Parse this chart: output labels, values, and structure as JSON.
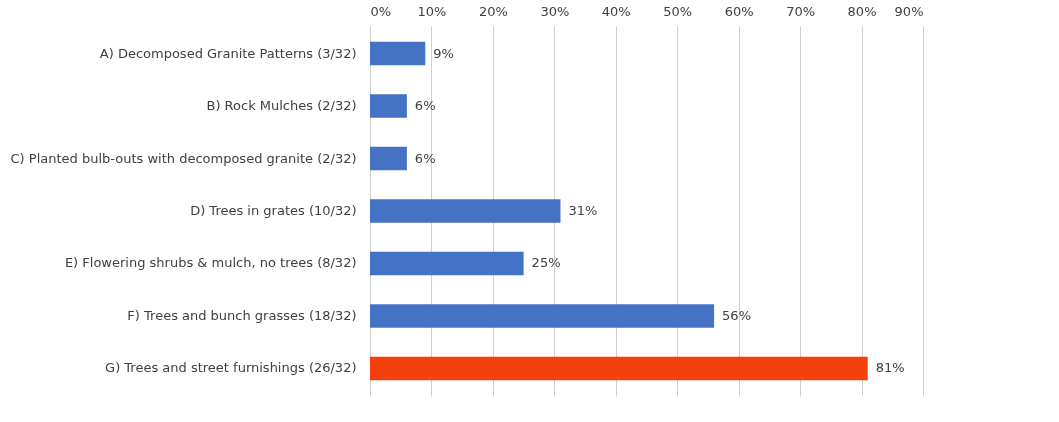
{
  "chart_data": {
    "type": "bar",
    "orientation": "horizontal",
    "categories": [
      "A) Decomposed Granite Patterns  (3/32)",
      "B) Rock Mulches  (2/32)",
      "C) Planted bulb-outs with decomposed granite  (2/32)",
      "D) Trees in grates  (10/32)",
      "E) Flowering shrubs & mulch, no trees  (8/32)",
      "F) Trees and bunch grasses  (18/32)",
      "G) Trees and street furnishings  (26/32)"
    ],
    "values": [
      9,
      6,
      6,
      31,
      25,
      56,
      81
    ],
    "value_labels": [
      "9%",
      "6%",
      "6%",
      "31%",
      "25%",
      "56%",
      "81%"
    ],
    "colors": [
      "#4472c4",
      "#4472c4",
      "#4472c4",
      "#4472c4",
      "#4472c4",
      "#4472c4",
      "#f4400c"
    ],
    "xlim": [
      0,
      90
    ],
    "xticks": [
      {
        "value": 0,
        "label": "0%"
      },
      {
        "value": 10,
        "label": "10%"
      },
      {
        "value": 20,
        "label": "20%"
      },
      {
        "value": 30,
        "label": "30%"
      },
      {
        "value": 40,
        "label": "40%"
      },
      {
        "value": 50,
        "label": "50%"
      },
      {
        "value": 60,
        "label": "60%"
      },
      {
        "value": 70,
        "label": "70%"
      },
      {
        "value": 80,
        "label": "80%"
      },
      {
        "value": 90,
        "label": "90%"
      }
    ],
    "grid": "x"
  }
}
